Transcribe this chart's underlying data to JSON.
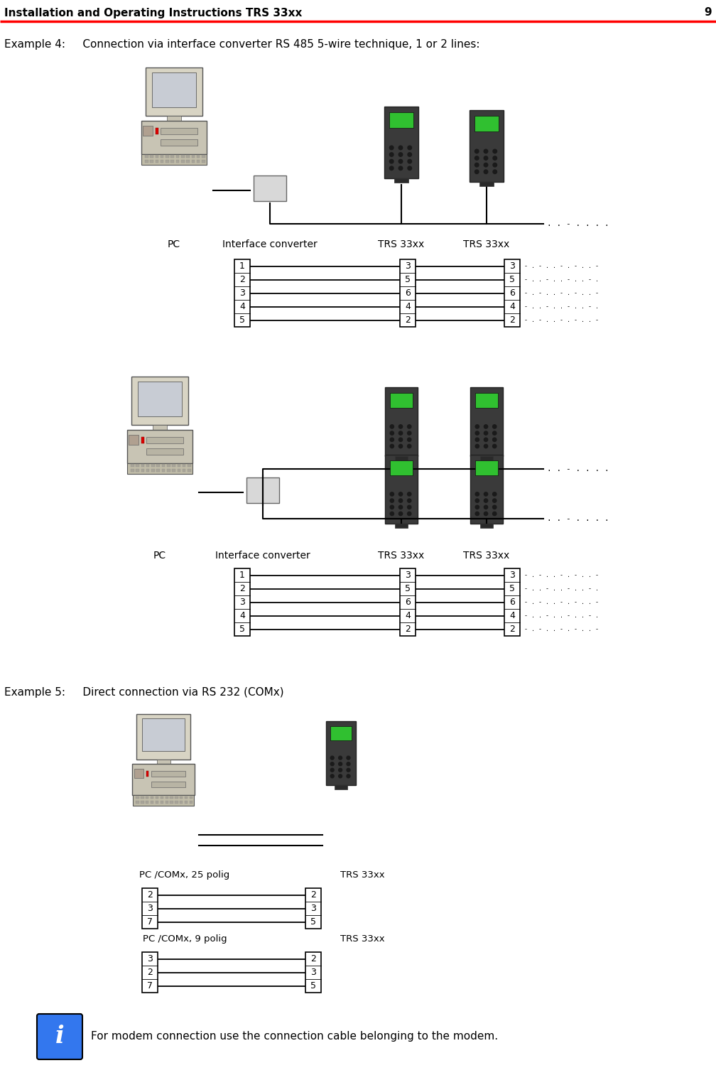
{
  "page_title": "Installation and Operating Instructions TRS 33xx",
  "page_number": "9",
  "header_line_color": "#ff0000",
  "background_color": "#ffffff",
  "example4_label": "Example 4:",
  "example4_text": "     Connection via interface converter RS 485 5-wire technique, 1 or 2 lines:",
  "example5_label": "Example 5:",
  "example5_text": "     Direct connection via RS 232 (COMx)",
  "modem_note": "For modem connection use the connection cable belonging to the modem.",
  "diagram1_labels": [
    "PC",
    "Interface converter",
    "TRS 33xx",
    "TRS 33xx"
  ],
  "diagram2_labels": [
    "PC",
    "Interface converter",
    "TRS 33xx",
    "TRS 33xx"
  ],
  "diagram3_label_25": "PC /COMx, 25 polig",
  "diagram3_label_9": "PC /COMx, 9 polig",
  "diagram3_label_trs1": "TRS 33xx",
  "diagram3_label_trs2": "TRS 33xx",
  "pin_table1_left": [
    "1",
    "2",
    "3",
    "4",
    "5"
  ],
  "pin_table1_mid": [
    "3",
    "5",
    "6",
    "4",
    "2"
  ],
  "pin_table1_right": [
    "3",
    "5",
    "6",
    "4",
    "2"
  ],
  "pin_table2_left": [
    "1",
    "2",
    "3",
    "4",
    "5"
  ],
  "pin_table2_mid": [
    "3",
    "5",
    "6",
    "4",
    "2"
  ],
  "pin_table2_right": [
    "3",
    "5",
    "6",
    "4",
    "2"
  ],
  "pin_table3_top_left": [
    "2",
    "3",
    "7"
  ],
  "pin_table3_top_right": [
    "2",
    "3",
    "5"
  ],
  "pin_table3_bot_left": [
    "3",
    "2",
    "7"
  ],
  "pin_table3_bot_right": [
    "2",
    "3",
    "5"
  ],
  "dot_patterns": [
    "- . - . . - . - . .",
    "- . . - . . - . . -",
    "- . - . . - . - . .",
    "- . . - . . - . . -",
    "- . - . . - . - . ."
  ]
}
